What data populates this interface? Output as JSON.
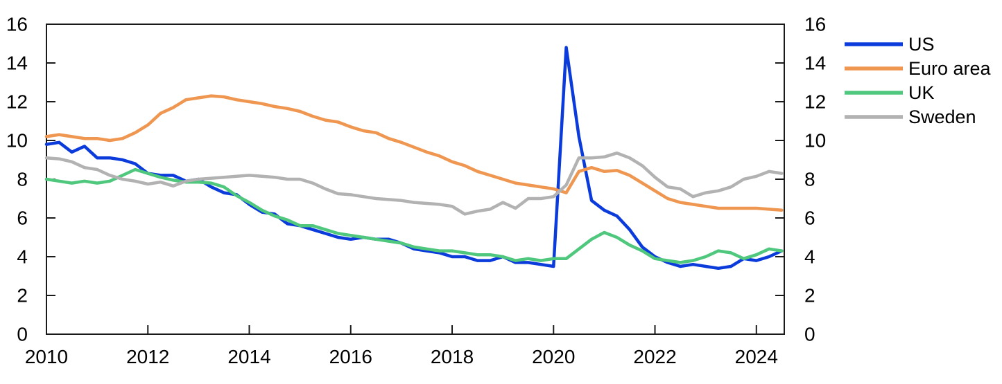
{
  "chart_data": {
    "type": "line",
    "title": "",
    "xlabel": "",
    "ylabel": "",
    "grid": false,
    "legend_position": "top-right-outside",
    "x_axis": {
      "min": 2010,
      "max": 2024.55,
      "tick_years": [
        2010,
        2012,
        2014,
        2016,
        2018,
        2020,
        2022,
        2024
      ]
    },
    "y_axis": {
      "min": 0,
      "max": 16,
      "ticks": [
        0,
        2,
        4,
        6,
        8,
        10,
        12,
        14,
        16
      ],
      "label_sides": [
        "left",
        "right"
      ]
    },
    "x_start": 2010.0,
    "x_step": 0.25,
    "series": [
      {
        "name": "US",
        "color": "#0b3cdb",
        "values": [
          9.8,
          9.9,
          9.4,
          9.7,
          9.1,
          9.1,
          9.0,
          8.8,
          8.3,
          8.2,
          8.2,
          7.9,
          8.0,
          7.6,
          7.3,
          7.2,
          6.7,
          6.3,
          6.2,
          5.7,
          5.6,
          5.4,
          5.2,
          5.0,
          4.9,
          5.0,
          4.9,
          4.9,
          4.7,
          4.4,
          4.3,
          4.2,
          4.0,
          4.0,
          3.8,
          3.8,
          4.0,
          3.7,
          3.7,
          3.6,
          3.5,
          14.8,
          10.2,
          6.9,
          6.4,
          6.1,
          5.4,
          4.5,
          4.0,
          3.7,
          3.5,
          3.6,
          3.5,
          3.4,
          3.5,
          3.9,
          3.8,
          4.0,
          4.3
        ]
      },
      {
        "name": "Euro area",
        "color": "#ef9651",
        "values": [
          10.2,
          10.3,
          10.2,
          10.1,
          10.1,
          10.0,
          10.1,
          10.4,
          10.8,
          11.4,
          11.7,
          12.1,
          12.2,
          12.3,
          12.25,
          12.1,
          12.0,
          11.9,
          11.75,
          11.65,
          11.5,
          11.25,
          11.05,
          10.95,
          10.7,
          10.5,
          10.4,
          10.1,
          9.9,
          9.65,
          9.4,
          9.2,
          8.9,
          8.7,
          8.4,
          8.2,
          8.0,
          7.8,
          7.7,
          7.6,
          7.5,
          7.3,
          8.4,
          8.6,
          8.4,
          8.45,
          8.2,
          7.8,
          7.4,
          7.0,
          6.8,
          6.7,
          6.6,
          6.5,
          6.5,
          6.5,
          6.5,
          6.45,
          6.4
        ]
      },
      {
        "name": "UK",
        "color": "#4fc87e",
        "values": [
          8.0,
          7.9,
          7.8,
          7.9,
          7.8,
          7.9,
          8.2,
          8.5,
          8.3,
          8.1,
          7.95,
          7.85,
          7.85,
          7.8,
          7.6,
          7.15,
          6.8,
          6.4,
          6.1,
          5.9,
          5.6,
          5.6,
          5.4,
          5.2,
          5.1,
          5.0,
          4.9,
          4.8,
          4.7,
          4.5,
          4.4,
          4.3,
          4.3,
          4.2,
          4.1,
          4.1,
          4.0,
          3.8,
          3.9,
          3.8,
          3.9,
          3.9,
          4.4,
          4.9,
          5.25,
          5.0,
          4.6,
          4.3,
          3.9,
          3.8,
          3.7,
          3.8,
          4.0,
          4.3,
          4.2,
          3.9,
          4.1,
          4.4,
          4.3
        ]
      },
      {
        "name": "Sweden",
        "color": "#b2b2b2",
        "values": [
          9.1,
          9.05,
          8.9,
          8.6,
          8.5,
          8.2,
          8.0,
          7.9,
          7.75,
          7.85,
          7.65,
          7.9,
          8.0,
          8.05,
          8.1,
          8.15,
          8.2,
          8.15,
          8.1,
          8.0,
          8.0,
          7.8,
          7.5,
          7.25,
          7.2,
          7.1,
          7.0,
          6.95,
          6.9,
          6.8,
          6.75,
          6.7,
          6.6,
          6.2,
          6.35,
          6.45,
          6.8,
          6.5,
          7.0,
          7.0,
          7.1,
          7.7,
          9.1,
          9.1,
          9.15,
          9.35,
          9.1,
          8.7,
          8.1,
          7.6,
          7.5,
          7.1,
          7.3,
          7.4,
          7.6,
          8.0,
          8.15,
          8.4,
          8.3
        ]
      }
    ],
    "axis_color": "#1a1a1a",
    "text_color": "#000000"
  }
}
